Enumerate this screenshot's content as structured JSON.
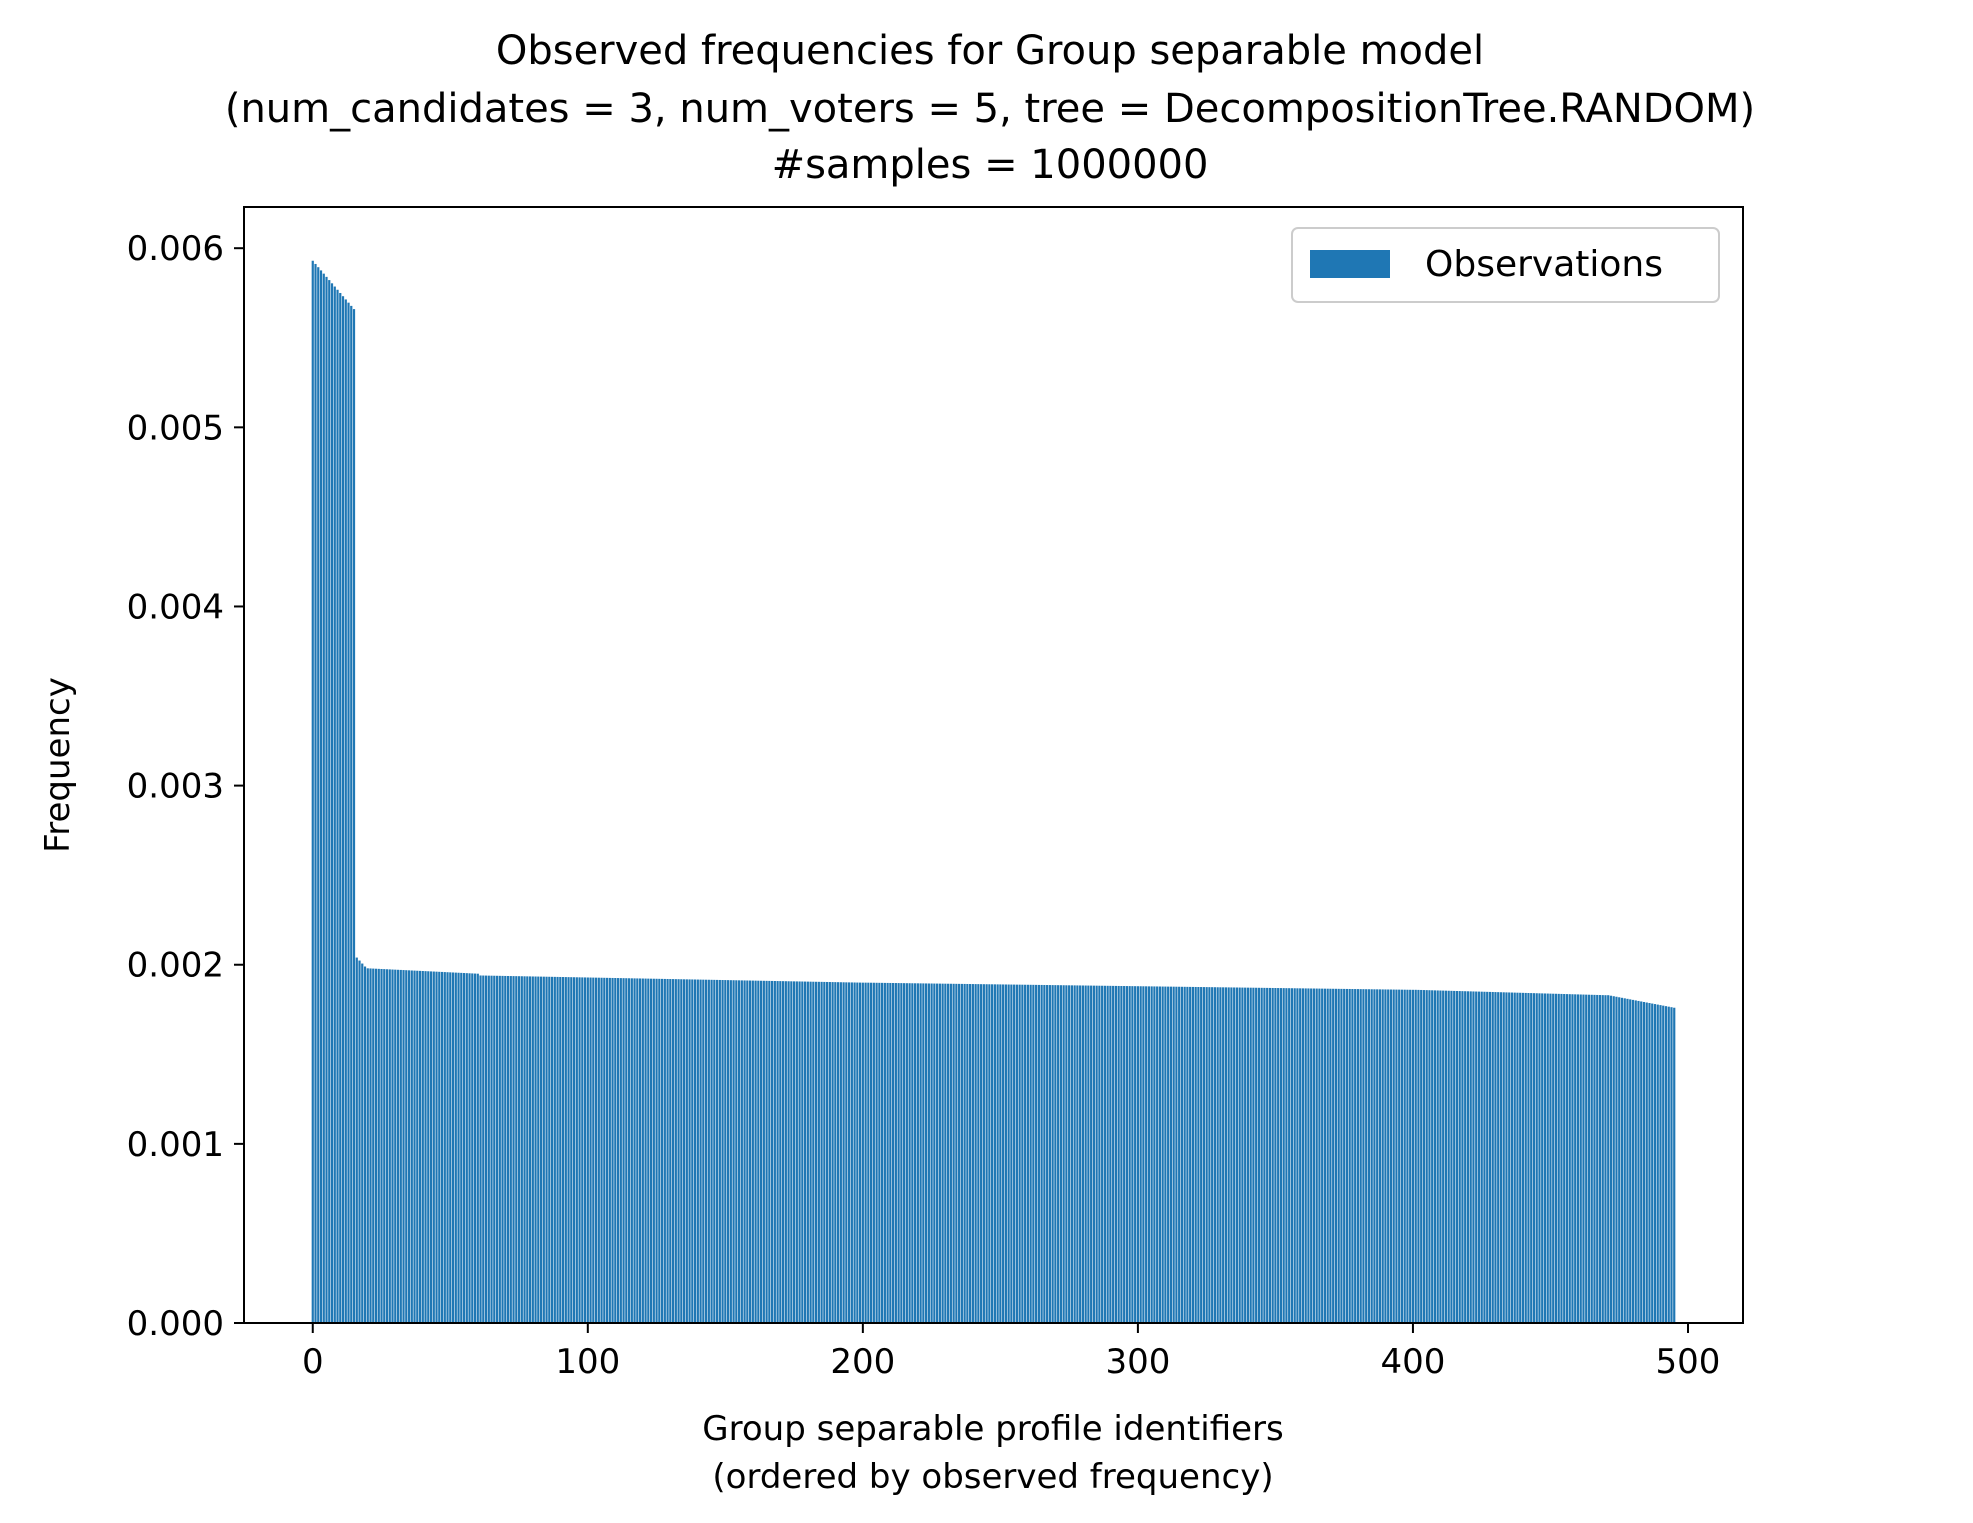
{
  "chart_data": {
    "type": "bar",
    "title": [
      "Observed frequencies for Group separable model",
      "(num_candidates = 3, num_voters = 5, tree = DecompositionTree.RANDOM)",
      "#samples = 1000000"
    ],
    "xlabel": [
      "Group separable profile identifiers",
      "(ordered by observed frequency)"
    ],
    "ylabel": "Frequency",
    "xlim": [
      -25,
      520
    ],
    "ylim": [
      0,
      0.00623
    ],
    "xticks": [
      0,
      100,
      200,
      300,
      400,
      500
    ],
    "xtick_labels": [
      "0",
      "100",
      "200",
      "300",
      "400",
      "500"
    ],
    "yticks": [
      0,
      0.001,
      0.002,
      0.003,
      0.004,
      0.005,
      0.006
    ],
    "ytick_labels": [
      "0.000",
      "0.001",
      "0.002",
      "0.003",
      "0.004",
      "0.005",
      "0.006"
    ],
    "grid": false,
    "legend": {
      "position": "top-right",
      "entries": [
        "Observations"
      ]
    },
    "series_color": "#1f77b4",
    "series": [
      {
        "name": "Observations",
        "x_start": 0,
        "count": 496,
        "segments": [
          {
            "from": 0,
            "to": 15,
            "start_value": 0.00593,
            "end_value": 0.00566
          },
          {
            "from": 16,
            "to": 19,
            "start_value": 0.00204,
            "end_value": 0.00199
          },
          {
            "from": 20,
            "to": 60,
            "start_value": 0.00198,
            "end_value": 0.00195
          },
          {
            "from": 61,
            "to": 200,
            "start_value": 0.00194,
            "end_value": 0.0019
          },
          {
            "from": 201,
            "to": 400,
            "start_value": 0.0019,
            "end_value": 0.00186
          },
          {
            "from": 401,
            "to": 470,
            "start_value": 0.00186,
            "end_value": 0.00183
          },
          {
            "from": 471,
            "to": 495,
            "start_value": 0.00183,
            "end_value": 0.00176
          }
        ]
      }
    ]
  }
}
